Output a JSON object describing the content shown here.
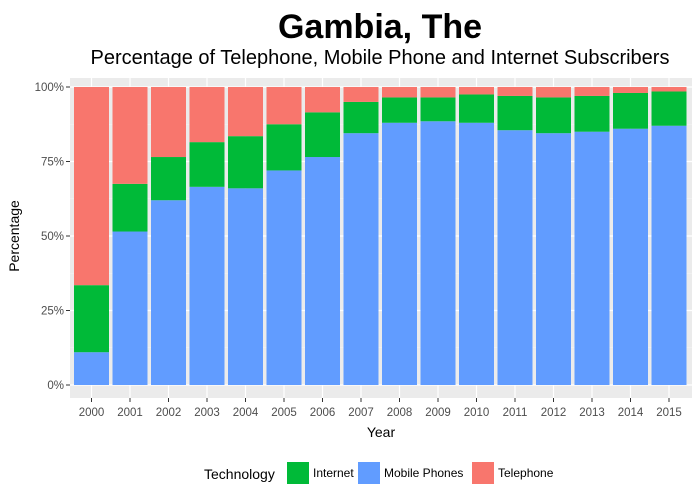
{
  "chart_data": {
    "type": "bar",
    "stacked": true,
    "title": "Gambia, The",
    "subtitle": "Percentage of Telephone, Mobile Phone and Internet Subscribers",
    "xlabel": "Year",
    "ylabel": "Percentage",
    "ylim": [
      0,
      100
    ],
    "y_ticks": [
      "0%",
      "25%",
      "50%",
      "75%",
      "100%"
    ],
    "y_tick_values": [
      0,
      25,
      50,
      75,
      100
    ],
    "grid": true,
    "legend_position": "bottom",
    "legend_title": "Technology",
    "categories": [
      "2000",
      "2001",
      "2002",
      "2003",
      "2004",
      "2005",
      "2006",
      "2007",
      "2008",
      "2009",
      "2010",
      "2011",
      "2012",
      "2013",
      "2014",
      "2015"
    ],
    "series": [
      {
        "name": "Mobile Phones",
        "color": "#619CFF",
        "values": [
          11,
          51.5,
          62,
          66.5,
          66,
          72,
          76.5,
          84.5,
          88,
          88.5,
          88,
          85.5,
          84.5,
          85,
          86,
          87
        ]
      },
      {
        "name": "Internet",
        "color": "#00BA38",
        "values": [
          22.5,
          16,
          14.5,
          15,
          17.5,
          15.5,
          15,
          10.5,
          8.5,
          8,
          9.5,
          11.5,
          12,
          12,
          12,
          11.5
        ]
      },
      {
        "name": "Telephone",
        "color": "#F8766D",
        "values": [
          66.5,
          32.5,
          23.5,
          18.5,
          16.5,
          12.5,
          8.5,
          5,
          3.5,
          3.5,
          2.5,
          3,
          3.5,
          3,
          2,
          1.5
        ]
      }
    ],
    "legend": [
      {
        "name": "Internet",
        "color": "#00BA38"
      },
      {
        "name": "Mobile Phones",
        "color": "#619CFF"
      },
      {
        "name": "Telephone",
        "color": "#F8766D"
      }
    ]
  }
}
